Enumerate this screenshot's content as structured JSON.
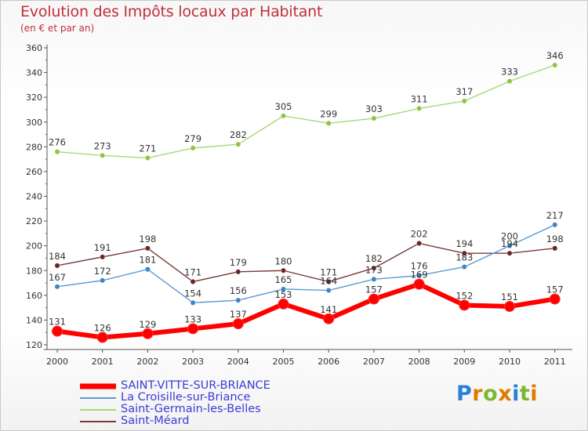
{
  "header": {
    "title": "Evolution des Impôts locaux par Habitant",
    "subtitle": "(en € et par an)"
  },
  "colors": {
    "title": "#c0303a",
    "legend_text": "#3b3bd6",
    "axis": "#555555",
    "grid_tick": "#cc3333"
  },
  "logo": {
    "text": "Proxiti",
    "letters": [
      "P",
      "r",
      "o",
      "x",
      "i",
      "t",
      "i"
    ],
    "colors": [
      "#2a7fd6",
      "#e07a00",
      "#7cb82f",
      "#e07a00",
      "#2a7fd6",
      "#7cb82f",
      "#e07a00"
    ]
  },
  "chart_data": {
    "type": "line",
    "title": "Evolution des Impôts locaux par Habitant",
    "subtitle": "(en € et par an)",
    "x": [
      "2000",
      "2001",
      "2002",
      "2003",
      "2004",
      "2005",
      "2006",
      "2007",
      "2008",
      "2009",
      "2010",
      "2011"
    ],
    "ylim": [
      120,
      360
    ],
    "yticks": [
      120,
      140,
      160,
      180,
      200,
      220,
      240,
      260,
      280,
      300,
      320,
      340,
      360
    ],
    "grid": false,
    "legend_position": "bottom-left",
    "series": [
      {
        "name": "SAINT-VITTE-SUR-BRIANCE",
        "color": "#ff0000",
        "marker_color": "#ff0000",
        "width": 6,
        "marker_r": 6.5,
        "values": [
          131,
          126,
          129,
          133,
          137,
          153,
          141,
          157,
          169,
          152,
          151,
          157
        ],
        "labels": [
          "131",
          "126",
          "129",
          "133",
          "137",
          "153",
          "141",
          "157",
          "169",
          "152",
          "151",
          "157"
        ]
      },
      {
        "name": "La Croisille-sur-Briance",
        "color": "#5d9ad1",
        "marker_color": "#3d86c8",
        "width": 1.4,
        "marker_r": 3.2,
        "values": [
          167,
          172,
          181,
          154,
          156,
          165,
          164,
          173,
          176,
          183,
          200,
          217
        ],
        "labels": [
          "167",
          "172",
          "181",
          "154",
          "156",
          "165",
          "164",
          "173",
          "176",
          "183",
          "200",
          "217"
        ]
      },
      {
        "name": "Saint-Germain-les-Belles",
        "color": "#a5d97a",
        "marker_color": "#8cc63f",
        "width": 1.4,
        "marker_r": 3.2,
        "values": [
          276,
          273,
          271,
          279,
          282,
          305,
          299,
          303,
          311,
          317,
          333,
          346
        ],
        "labels": [
          "276",
          "273",
          "271",
          "279",
          "282",
          "305",
          "299",
          "303",
          "311",
          "317",
          "333",
          "346"
        ]
      },
      {
        "name": "Saint-Méard",
        "color": "#7a3a3a",
        "marker_color": "#6a2525",
        "width": 1.4,
        "marker_r": 3.2,
        "values": [
          184,
          191,
          198,
          171,
          179,
          180,
          171,
          182,
          202,
          194,
          194,
          198
        ],
        "labels": [
          "184",
          "191",
          "198",
          "171",
          "179",
          "180",
          "171",
          "182",
          "202",
          "194",
          "194",
          "198"
        ]
      }
    ]
  }
}
